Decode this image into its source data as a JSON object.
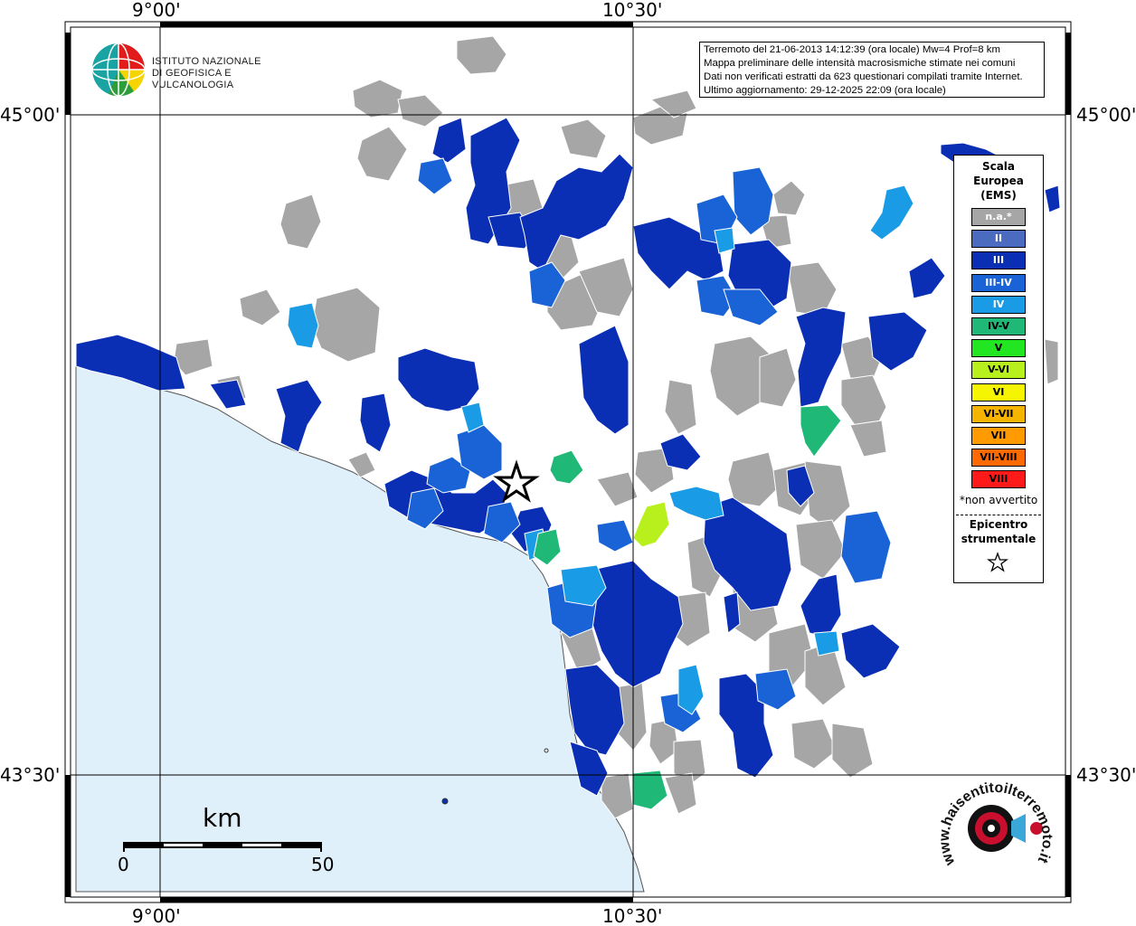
{
  "coords": {
    "top_left_lon": "9°00'",
    "top_right_lon": "10°30'",
    "bottom_left_lon": "9°00'",
    "bottom_right_lon": "10°30'",
    "left_upper_lat": "45°00'",
    "left_lower_lat": "43°30'",
    "right_upper_lat": "45°00'",
    "right_lower_lat": "43°30'"
  },
  "header": {
    "line1": "Terremoto del 21-06-2013 14:12:39 (ora locale) Mw=4 Prof=8 km",
    "line2": "Mappa preliminare delle intensità macrosismiche stimate nei comuni",
    "line3": "Dati non verificati estratti da 623 questionari compilati tramite Internet.",
    "line4": "Ultimo aggiornamento: 29-12-2025 22:09 (ora locale)"
  },
  "logo": {
    "line1": "ISTITUTO NAZIONALE",
    "line2": "DI GEOFISICA E VULCANOLOGIA"
  },
  "legend": {
    "title1": "Scala",
    "title2": "Europea",
    "title3": "(EMS)",
    "items": [
      {
        "label": "n.a.*",
        "color": "#a6a6a6",
        "text": "#ffffff"
      },
      {
        "label": "II",
        "color": "#4a6bbf",
        "text": "#ffffff"
      },
      {
        "label": "III",
        "color": "#0a2fb5",
        "text": "#ffffff"
      },
      {
        "label": "III-IV",
        "color": "#1a63d6",
        "text": "#ffffff"
      },
      {
        "label": "IV",
        "color": "#1a9be6",
        "text": "#ffffff"
      },
      {
        "label": "IV-V",
        "color": "#1fb877",
        "text": "#000000"
      },
      {
        "label": "V",
        "color": "#22e622",
        "text": "#000000"
      },
      {
        "label": "V-VI",
        "color": "#b7f01c",
        "text": "#000000"
      },
      {
        "label": "VI",
        "color": "#f5f500",
        "text": "#000000"
      },
      {
        "label": "VI-VII",
        "color": "#f5b400",
        "text": "#000000"
      },
      {
        "label": "VII",
        "color": "#ff9a00",
        "text": "#000000"
      },
      {
        "label": "VII-VIII",
        "color": "#ff6a00",
        "text": "#000000"
      },
      {
        "label": "VIII",
        "color": "#ff1a1a",
        "text": "#000000"
      }
    ],
    "note": "*non avvertito",
    "epi1": "Epicentro",
    "epi2": "strumentale"
  },
  "scale": {
    "unit": "km",
    "start": "0",
    "end": "50"
  },
  "hst_logo": {
    "text": "www.haisentitoilterremoto.it"
  },
  "colors": {
    "sea": "#dff0fb",
    "gray": "#a6a6a6",
    "ii": "#4a6bbf",
    "iii": "#0a2fb5",
    "iii_iv": "#1a63d6",
    "iv": "#1a9be6",
    "iv_v": "#1fb877",
    "v_vi": "#b7f01c"
  }
}
